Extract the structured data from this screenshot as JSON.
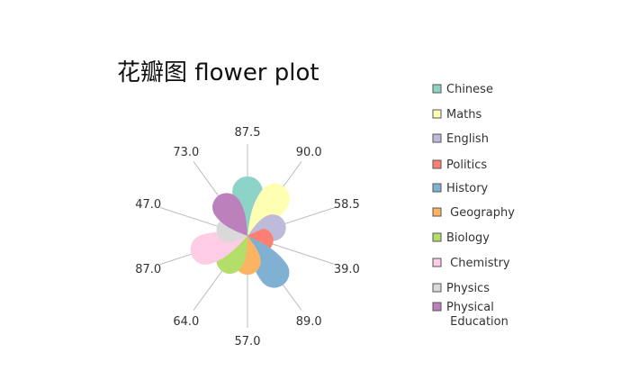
{
  "chart_data": {
    "type": "pie",
    "subtype": "flower",
    "title": "花瓣图 flower plot",
    "categories": [
      "Chinese",
      "Maths",
      "English",
      "Politics",
      "History",
      "Geography",
      "Biology",
      "Chemistry",
      "Physics",
      "Physical Education"
    ],
    "values": [
      87.5,
      90.0,
      58.5,
      39.0,
      89.0,
      57.0,
      64.0,
      87.0,
      47.0,
      73.0
    ],
    "value_labels": [
      "87.5",
      "90.0",
      "58.5",
      "39.0",
      "89.0",
      "57.0",
      "64.0",
      "87.0",
      "47.0",
      "73.0"
    ],
    "colors": [
      "#8dd3c7",
      "#ffffb3",
      "#bebada",
      "#fb8072",
      "#80b1d3",
      "#fdb462",
      "#b3de69",
      "#fccde5",
      "#d9d9d9",
      "#bc80bd"
    ],
    "legend_labels": [
      [
        "Chinese"
      ],
      [
        "Maths"
      ],
      [
        "English"
      ],
      [
        "Politics"
      ],
      [
        "History"
      ],
      [
        " Geography"
      ],
      [
        "Biology"
      ],
      [
        " Chemistry"
      ],
      [
        "Physics"
      ],
      [
        "Physical",
        " Education"
      ]
    ],
    "legend_position": "right",
    "grid": false
  }
}
